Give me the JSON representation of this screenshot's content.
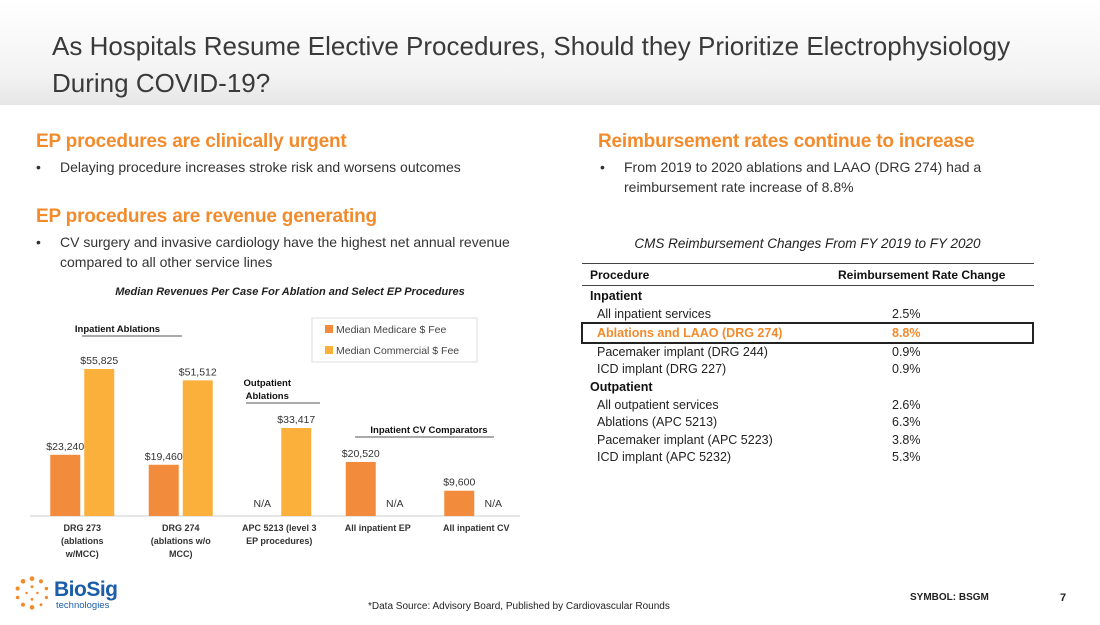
{
  "slide": {
    "title": "As Hospitals Resume Elective Procedures, Should they Prioritize Electrophysiology During COVID-19?",
    "page_number": "7",
    "symbol": "SYMBOL: BSGM",
    "footnote": "*Data Source: Advisory Board, Published by Cardiovascular Rounds",
    "accent_color": "#f28b2c"
  },
  "left": {
    "heading1": "EP procedures are clinically urgent",
    "bullet1": "Delaying procedure increases stroke risk and worsens outcomes",
    "heading2": "EP procedures are revenue generating",
    "bullet2": "CV surgery and invasive cardiology have the highest net annual revenue compared to all other service lines",
    "bullet_symbol": "•"
  },
  "right": {
    "heading": "Reimbursement rates continue to increase",
    "bullet": "From 2019 to 2020 ablations and LAAO (DRG 274) had a reimbursement rate increase of 8.8%"
  },
  "chart_data": {
    "type": "bar",
    "title": "Median Revenues Per Case For Ablation and Select EP Procedures",
    "categories": [
      "DRG 273 (ablations w/MCC)",
      "DRG 274 (ablations w/o MCC)",
      "APC 5213 (level 3 EP procedures)",
      "All inpatient EP",
      "All inpatient CV"
    ],
    "category_lines": [
      [
        "DRG 273",
        "(ablations",
        "w/MCC)"
      ],
      [
        "DRG 274",
        "(ablations w/o",
        "MCC)"
      ],
      [
        "APC 5213 (level 3",
        "EP procedures)"
      ],
      [
        "All inpatient EP"
      ],
      [
        "All inpatient CV"
      ]
    ],
    "series": [
      {
        "name": "Median Medicare $ Fee",
        "color": "#f28b3c",
        "values": [
          23240,
          19460,
          null,
          20520,
          9600
        ],
        "labels": [
          "$23,240",
          "$19,460",
          "N/A",
          "$20,520",
          "$9,600"
        ]
      },
      {
        "name": "Median Commercial $ Fee",
        "color": "#fbb03b",
        "values": [
          55825,
          51512,
          33417,
          null,
          null
        ],
        "labels": [
          "$55,825",
          "$51,512",
          "$33,417",
          "N/A",
          "N/A"
        ]
      }
    ],
    "ylim": [
      0,
      60000
    ],
    "group_labels": [
      {
        "text": "Inpatient Ablations",
        "categories": [
          0,
          1
        ]
      },
      {
        "text": "Outpatient Ablations",
        "categories": [
          2
        ]
      },
      {
        "text": "Inpatient CV Comparators",
        "categories": [
          3,
          4
        ]
      }
    ],
    "legend_position": "top-right"
  },
  "table": {
    "title": "CMS Reimbursement Changes From FY 2019 to FY 2020",
    "col_procedure": "Procedure",
    "col_change": "Reimbursement Rate Change",
    "sections": [
      {
        "name": "Inpatient",
        "rows": [
          {
            "label": "All inpatient services",
            "value": "2.5%"
          },
          {
            "label": "Ablations and LAAO (DRG 274)",
            "value": "8.8%",
            "highlight": true
          },
          {
            "label": "Pacemaker implant (DRG 244)",
            "value": "0.9%"
          },
          {
            "label": "ICD implant (DRG 227)",
            "value": "0.9%"
          }
        ]
      },
      {
        "name": "Outpatient",
        "rows": [
          {
            "label": "All outpatient services",
            "value": "2.6%"
          },
          {
            "label": "Ablations (APC 5213)",
            "value": "6.3%"
          },
          {
            "label": "Pacemaker implant (APC 5223)",
            "value": "3.8%"
          },
          {
            "label": "ICD implant (APC 5232)",
            "value": "5.3%"
          }
        ]
      }
    ]
  },
  "logo": {
    "word": "BioSig",
    "sub": "technologies"
  }
}
